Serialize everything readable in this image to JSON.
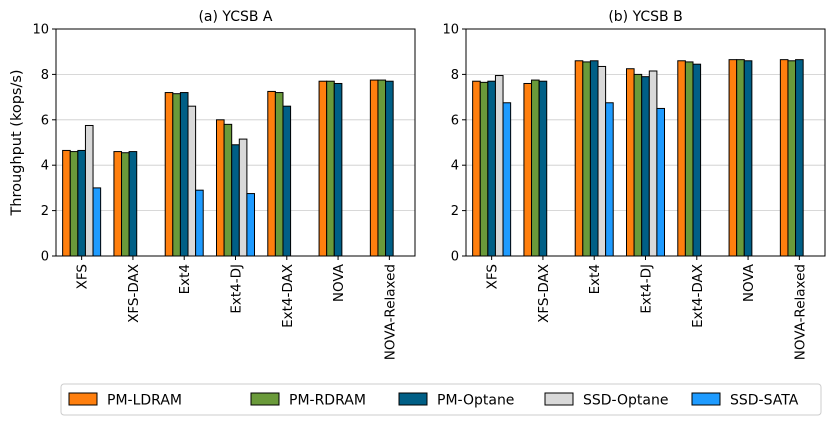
{
  "chart_data": {
    "type": "bar",
    "ylabel": "Throughput (kops/s)",
    "ylim": [
      0,
      10
    ],
    "yticks": [
      0,
      2,
      4,
      6,
      8,
      10
    ],
    "categories": [
      "XFS",
      "XFS-DAX",
      "Ext4",
      "Ext4-DJ",
      "Ext4-DAX",
      "NOVA",
      "NOVA-Relaxed"
    ],
    "legend": {
      "placement": "bottom",
      "entries": [
        {
          "name": "PM-LDRAM",
          "color": "#ff7f0e"
        },
        {
          "name": "PM-RDRAM",
          "color": "#6a9a3a"
        },
        {
          "name": "PM-Optane",
          "color": "#005f86"
        },
        {
          "name": "SSD-Optane",
          "color": "#d9d9d9"
        },
        {
          "name": "SSD-SATA",
          "color": "#1e9bff"
        }
      ]
    },
    "panels": [
      {
        "title": "(a) YCSB A",
        "series": [
          {
            "name": "PM-LDRAM",
            "values": [
              4.65,
              4.6,
              7.2,
              6.0,
              7.25,
              7.7,
              7.75
            ]
          },
          {
            "name": "PM-RDRAM",
            "values": [
              4.6,
              4.55,
              7.15,
              5.8,
              7.2,
              7.7,
              7.75
            ]
          },
          {
            "name": "PM-Optane",
            "values": [
              4.65,
              4.6,
              7.2,
              4.9,
              6.6,
              7.6,
              7.7
            ]
          },
          {
            "name": "SSD-Optane",
            "values": [
              5.75,
              null,
              6.6,
              5.15,
              null,
              null,
              null
            ]
          },
          {
            "name": "SSD-SATA",
            "values": [
              3.0,
              null,
              2.9,
              2.75,
              null,
              null,
              null
            ]
          }
        ]
      },
      {
        "title": "(b) YCSB B",
        "series": [
          {
            "name": "PM-LDRAM",
            "values": [
              7.7,
              7.6,
              8.6,
              8.25,
              8.6,
              8.65,
              8.65
            ]
          },
          {
            "name": "PM-RDRAM",
            "values": [
              7.65,
              7.75,
              8.55,
              8.0,
              8.55,
              8.65,
              8.6
            ]
          },
          {
            "name": "PM-Optane",
            "values": [
              7.7,
              7.7,
              8.6,
              7.9,
              8.45,
              8.6,
              8.65
            ]
          },
          {
            "name": "SSD-Optane",
            "values": [
              7.95,
              null,
              8.35,
              8.15,
              null,
              null,
              null
            ]
          },
          {
            "name": "SSD-SATA",
            "values": [
              6.75,
              null,
              6.75,
              6.5,
              null,
              null,
              null
            ]
          }
        ]
      }
    ]
  }
}
